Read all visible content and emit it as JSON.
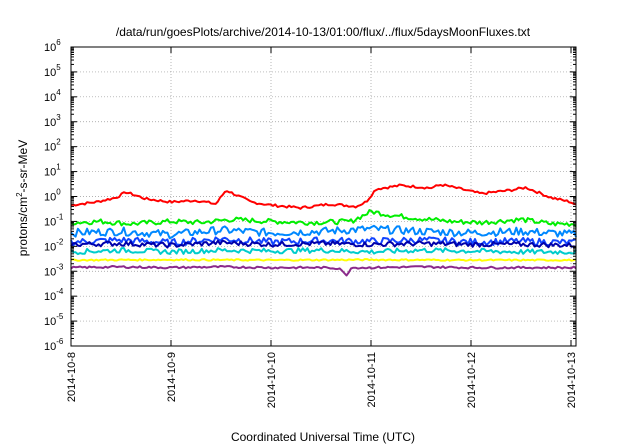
{
  "chart_data": {
    "type": "line",
    "title": "/data/run/goesPlots/archive/2014-10-13/01:00/flux/../flux/5daysMoonFluxes.txt",
    "xlabel": "Coordinated Universal Time (UTC)",
    "ylabel": {
      "base": "protons/cm",
      "sup": "2",
      "rest": "-s-sr-MeV"
    },
    "x_ticks": [
      "2014-10-8",
      "2014-10-9",
      "2014-10-10",
      "2014-10-11",
      "2014-10-12",
      "2014-10-13"
    ],
    "x_range_days": [
      0,
      5.05
    ],
    "y_scale": "log",
    "ylim_exp": [
      -6,
      6
    ],
    "y_ticks": [
      {
        "b": "10",
        "e": "6"
      },
      {
        "b": "10",
        "e": "5"
      },
      {
        "b": "10",
        "e": "4"
      },
      {
        "b": "10",
        "e": "3"
      },
      {
        "b": "10",
        "e": "2"
      },
      {
        "b": "10",
        "e": "1"
      },
      {
        "b": "10",
        "e": "0"
      },
      {
        "b": "10",
        "e": "-1"
      },
      {
        "b": "10",
        "e": "-2"
      },
      {
        "b": "10",
        "e": "-3"
      },
      {
        "b": "10",
        "e": "-4"
      },
      {
        "b": "10",
        "e": "-5"
      },
      {
        "b": "10",
        "e": "-6"
      }
    ],
    "grid": true,
    "series": [
      {
        "color": "#ff0000",
        "x": [
          0,
          0.25,
          0.45,
          0.55,
          0.75,
          1.0,
          1.25,
          1.45,
          1.55,
          1.8,
          2.0,
          2.3,
          2.6,
          2.85,
          2.95,
          3.05,
          3.3,
          3.6,
          3.7,
          3.9,
          4.1,
          4.4,
          4.55,
          4.8,
          5.0,
          5.05
        ],
        "y": [
          0.45,
          0.6,
          0.9,
          1.5,
          0.8,
          0.6,
          0.7,
          0.5,
          1.8,
          0.6,
          0.45,
          0.35,
          0.5,
          0.4,
          0.6,
          2.0,
          2.8,
          2.2,
          3.0,
          2.0,
          1.3,
          1.8,
          2.3,
          0.9,
          0.6,
          0.45
        ]
      },
      {
        "color": "#00ee00",
        "x": [
          0,
          0.3,
          0.6,
          1.0,
          1.3,
          1.6,
          2.0,
          2.4,
          2.8,
          3.0,
          3.2,
          3.5,
          3.8,
          4.1,
          4.5,
          4.8,
          5.05
        ],
        "y": [
          0.09,
          0.1,
          0.08,
          0.1,
          0.09,
          0.12,
          0.1,
          0.09,
          0.1,
          0.25,
          0.18,
          0.13,
          0.1,
          0.09,
          0.12,
          0.08,
          0.08
        ]
      },
      {
        "color": "#0088ff",
        "x": [
          0,
          0.5,
          1.0,
          1.5,
          2.0,
          2.5,
          3.0,
          3.5,
          4.0,
          4.5,
          5.05
        ],
        "y": [
          0.035,
          0.04,
          0.03,
          0.045,
          0.035,
          0.04,
          0.05,
          0.04,
          0.035,
          0.04,
          0.03
        ]
      },
      {
        "color": "#1144ff",
        "x": [
          0,
          0.5,
          1.0,
          1.5,
          2.0,
          2.5,
          3.0,
          3.5,
          4.0,
          4.5,
          5.05
        ],
        "y": [
          0.015,
          0.018,
          0.014,
          0.02,
          0.015,
          0.017,
          0.016,
          0.018,
          0.015,
          0.016,
          0.014
        ]
      },
      {
        "color": "#0000aa",
        "x": [
          0,
          0.5,
          1.0,
          1.5,
          2.0,
          2.5,
          3.0,
          3.5,
          4.0,
          4.5,
          5.05
        ],
        "y": [
          0.012,
          0.013,
          0.011,
          0.014,
          0.012,
          0.013,
          0.012,
          0.013,
          0.012,
          0.012,
          0.011
        ]
      },
      {
        "color": "#00cccc",
        "x": [
          0,
          0.5,
          1.0,
          1.5,
          2.0,
          2.5,
          3.0,
          3.5,
          4.0,
          4.5,
          5.05
        ],
        "y": [
          0.006,
          0.007,
          0.006,
          0.007,
          0.0065,
          0.007,
          0.006,
          0.007,
          0.0065,
          0.006,
          0.006
        ]
      },
      {
        "color": "#ffff00",
        "x": [
          0,
          1.0,
          2.0,
          3.0,
          4.0,
          5.05
        ],
        "y": [
          0.0028,
          0.0029,
          0.0028,
          0.0029,
          0.0028,
          0.0028
        ]
      },
      {
        "color": "#8b2a8b",
        "x": [
          0,
          0.5,
          1.0,
          1.5,
          2.0,
          2.5,
          2.7,
          2.75,
          2.8,
          3.0,
          3.5,
          4.0,
          4.5,
          5.05
        ],
        "y": [
          0.0014,
          0.0015,
          0.0014,
          0.0015,
          0.0014,
          0.0014,
          0.0013,
          0.0006,
          0.0014,
          0.0014,
          0.0015,
          0.0014,
          0.0014,
          0.0014
        ]
      }
    ]
  }
}
